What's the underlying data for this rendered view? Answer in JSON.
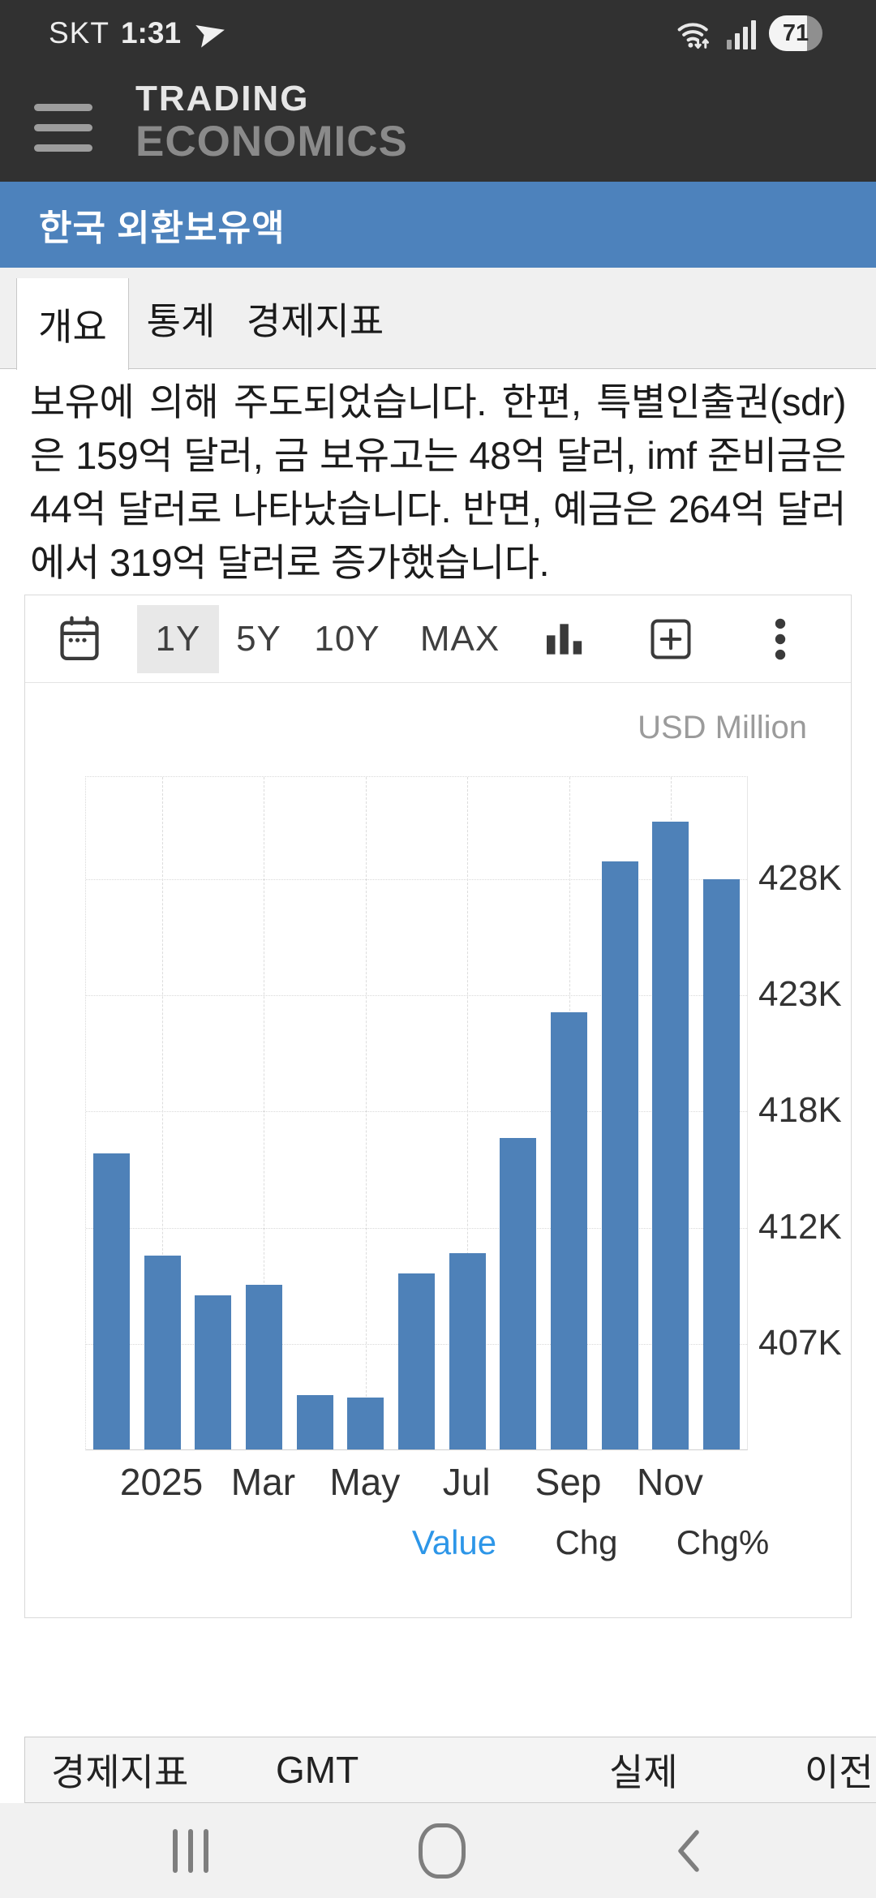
{
  "status_bar": {
    "carrier": "SKT",
    "time": "1:31",
    "battery_percent": "71"
  },
  "header": {
    "logo_line1": "TRADING",
    "logo_line2": "ECONOMICS"
  },
  "title_bar": {
    "title": "한국 외환보유액"
  },
  "tabs": [
    {
      "label": "개요",
      "active": true
    },
    {
      "label": "통계",
      "active": false
    },
    {
      "label": "경제지표",
      "active": false
    }
  ],
  "article": {
    "text": "보유에 의해 주도되었습니다. 한편, 특별인출권(sdr)은 159억 달러, 금 보유고는 48억 달러, imf 준비금은 44억 달러로 나타났습니다. 반면, 예금은 264억 달러에서 319억 달러로 증가했습니다."
  },
  "chart_toolbar": {
    "ranges": [
      "1Y",
      "5Y",
      "10Y",
      "MAX"
    ],
    "active_range": "1Y"
  },
  "chart_data": {
    "type": "bar",
    "title": "한국 외환보유액 1Y",
    "unit_label": "USD Million",
    "categories": [
      "Dec 2024",
      "Jan 2025",
      "Feb 2025",
      "Mar 2025",
      "Apr 2025",
      "May 2025",
      "Jun 2025",
      "Jul 2025",
      "Aug 2025",
      "Sep 2025",
      "Oct 2025",
      "Nov 2025",
      "Dec 2025"
    ],
    "values": [
      415600,
      411000,
      409200,
      409700,
      404700,
      404600,
      410200,
      411100,
      416300,
      422000,
      428800,
      430600,
      428000
    ],
    "x_tick_labels": [
      "2025",
      "Mar",
      "May",
      "Jul",
      "Sep",
      "Nov"
    ],
    "x_tick_month_index": [
      1,
      3,
      5,
      7,
      9,
      11
    ],
    "y_tick_labels": [
      "428K",
      "423K",
      "418K",
      "412K",
      "407K"
    ],
    "y_tick_values": [
      428000,
      422750,
      417500,
      412250,
      407000
    ],
    "ylim": [
      402250,
      432600
    ],
    "bar_color": "#4e81b8",
    "grid": true,
    "legend_position": "none"
  },
  "chart_footer": {
    "links": [
      {
        "label": "Value",
        "active": true
      },
      {
        "label": "Chg",
        "active": false
      },
      {
        "label": "Chg%",
        "active": false
      }
    ]
  },
  "calendar_table": {
    "headers": [
      "경제지표",
      "GMT",
      "실제",
      "이전"
    ]
  },
  "colors": {
    "header_bg": "#313131",
    "title_bar_bg": "#4d82bc",
    "bar_color": "#4e81b8",
    "active_link": "#2d96e8"
  }
}
